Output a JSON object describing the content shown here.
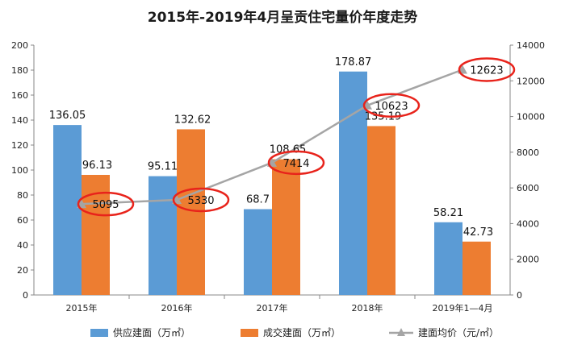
{
  "chart_data": {
    "type": "bar",
    "title": "2015年-2019年4月呈贡住宅量价年度走势",
    "categories": [
      "2015年",
      "2016年",
      "2017年",
      "2018年",
      "2019年1—4月"
    ],
    "series": [
      {
        "name": "供应建面（万㎡）",
        "kind": "bar",
        "axis": "left",
        "color": "#5b9bd5",
        "values": [
          136.05,
          95.11,
          68.7,
          178.87,
          58.21
        ]
      },
      {
        "name": "成交建面（万㎡）",
        "kind": "bar",
        "axis": "left",
        "color": "#ed7d31",
        "values": [
          96.13,
          132.62,
          108.65,
          135.19,
          42.73
        ]
      },
      {
        "name": "建面均价（元/㎡）",
        "kind": "line",
        "axis": "right",
        "color": "#a5a5a5",
        "values": [
          5095,
          5330,
          7414,
          10623,
          12623
        ]
      }
    ],
    "y_left": {
      "range": [
        0,
        200
      ],
      "ticks": [
        "0",
        "20",
        "40",
        "60",
        "80",
        "100",
        "120",
        "140",
        "160",
        "180",
        "200"
      ]
    },
    "y_right": {
      "range": [
        0,
        14000
      ],
      "ticks": [
        "0",
        "2000",
        "4000",
        "6000",
        "8000",
        "10000",
        "12000",
        "14000"
      ]
    },
    "data_labels": {
      "supply": [
        "136.05",
        "95.11",
        "68.7",
        "178.87",
        "58.21"
      ],
      "deal": [
        "96.13",
        "132.62",
        "108.65",
        "135.19",
        "42.73"
      ],
      "price": [
        "5095",
        "5330",
        "7414",
        "10623",
        "12623"
      ]
    },
    "highlight_color": "#e8231b",
    "grid": false,
    "legend": "bottom"
  }
}
